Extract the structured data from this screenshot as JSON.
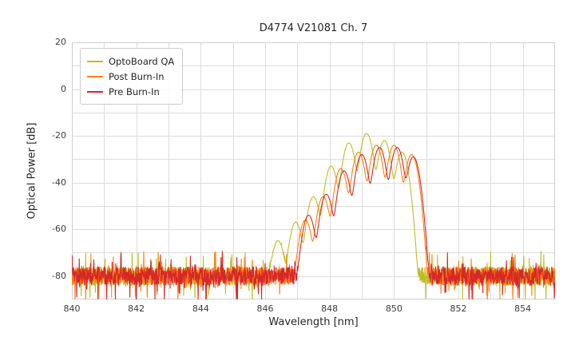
{
  "chart_data": {
    "type": "line",
    "title": "D4774 V21081 Ch. 7",
    "xlabel": "Wavelength [nm]",
    "ylabel": "Optical Power [dB]",
    "xlim": [
      840,
      855
    ],
    "ylim": [
      -90,
      20
    ],
    "xticks": [
      840,
      842,
      844,
      846,
      848,
      850,
      852,
      854
    ],
    "yticks": [
      20,
      0,
      -20,
      -40,
      -60,
      -80
    ],
    "xgrid_step": 1,
    "ygrid_step": 10,
    "grid": true,
    "grid_color": "#dcdcdc",
    "border_color": "#cfcfcf",
    "background": "#ffffff",
    "legend_position": "upper left",
    "noise_floor_db": -80,
    "noise_amplitude_db": 4,
    "mode_width_nm": 0.14,
    "series": [
      {
        "name": "OptoBoard QA",
        "color": "#bcbd22",
        "modes": [
          {
            "center": 846.4,
            "peak_db": -65
          },
          {
            "center": 846.95,
            "peak_db": -57
          },
          {
            "center": 847.5,
            "peak_db": -46
          },
          {
            "center": 848.05,
            "peak_db": -33
          },
          {
            "center": 848.6,
            "peak_db": -23
          },
          {
            "center": 849.15,
            "peak_db": -19
          },
          {
            "center": 849.7,
            "peak_db": -22
          },
          {
            "center": 850.25,
            "peak_db": -27
          }
        ]
      },
      {
        "name": "Post Burn-In",
        "color": "#ff7f0e",
        "modes": [
          {
            "center": 847.25,
            "peak_db": -56
          },
          {
            "center": 847.8,
            "peak_db": -46
          },
          {
            "center": 848.35,
            "peak_db": -34
          },
          {
            "center": 848.9,
            "peak_db": -27
          },
          {
            "center": 849.45,
            "peak_db": -24
          },
          {
            "center": 850.0,
            "peak_db": -24
          },
          {
            "center": 850.55,
            "peak_db": -28
          }
        ]
      },
      {
        "name": "Pre Burn-In",
        "color": "#d62728",
        "modes": [
          {
            "center": 847.35,
            "peak_db": -54
          },
          {
            "center": 847.9,
            "peak_db": -45
          },
          {
            "center": 848.45,
            "peak_db": -35
          },
          {
            "center": 849.0,
            "peak_db": -28
          },
          {
            "center": 849.55,
            "peak_db": -25
          },
          {
            "center": 850.1,
            "peak_db": -25
          },
          {
            "center": 850.6,
            "peak_db": -29
          }
        ]
      }
    ]
  }
}
